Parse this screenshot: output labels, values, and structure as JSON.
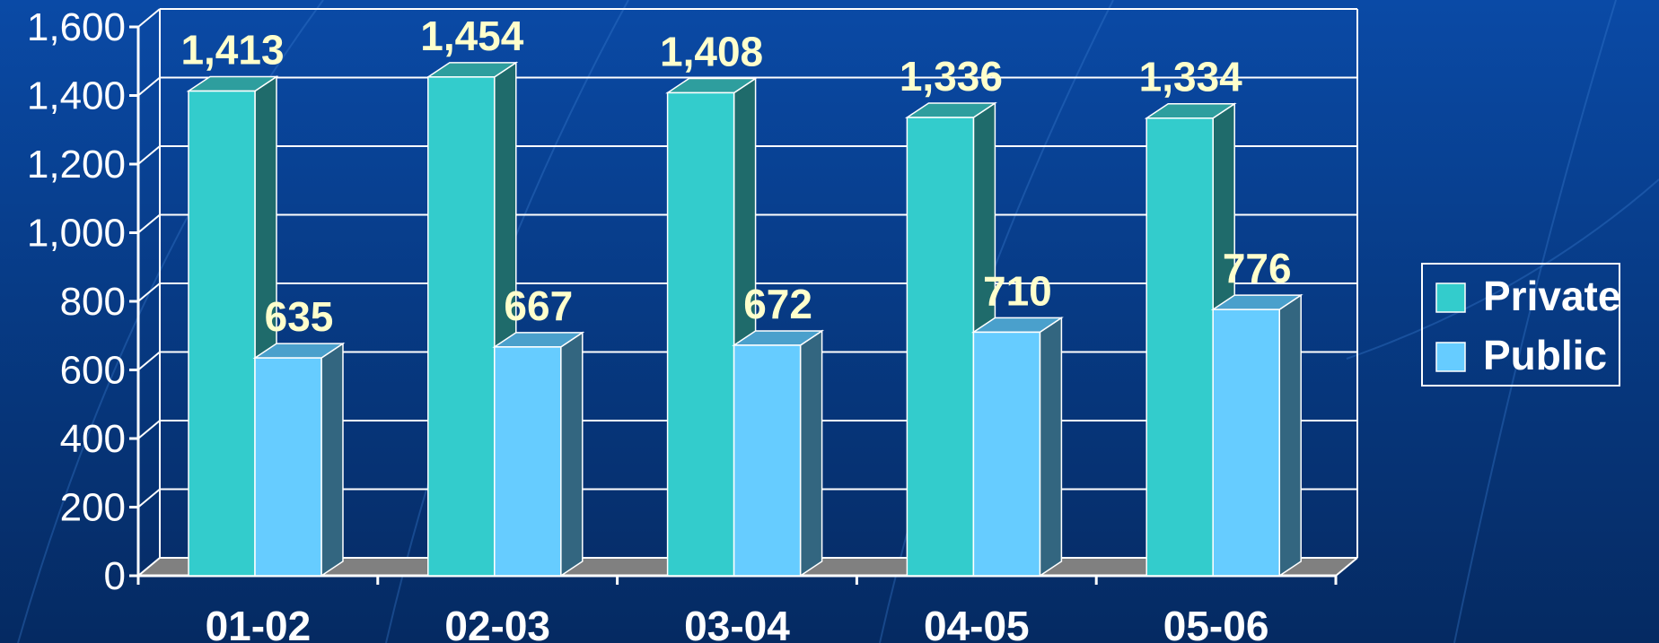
{
  "chart_data": {
    "type": "bar",
    "categories": [
      "01-02",
      "02-03",
      "03-04",
      "04-05",
      "05-06"
    ],
    "series": [
      {
        "name": "Private",
        "values": [
          1413,
          1454,
          1408,
          1336,
          1334
        ],
        "color": "#33cccc",
        "side": "#1f6b6b",
        "top": "#2e9e9e"
      },
      {
        "name": "Public",
        "values": [
          635,
          667,
          672,
          710,
          776
        ],
        "color": "#66ccff",
        "side": "#336680",
        "top": "#4aa0cc"
      }
    ],
    "ylim": [
      0,
      1600
    ],
    "yticks": [
      "0",
      "200",
      "400",
      "600",
      "800",
      "1,000",
      "1,200",
      "1,400",
      "1,600"
    ],
    "data_labels": [
      [
        "1,413",
        "1,454",
        "1,408",
        "1,336",
        "1,334"
      ],
      [
        "635",
        "667",
        "672",
        "710",
        "776"
      ]
    ],
    "grid": true,
    "legend_position": "right"
  }
}
